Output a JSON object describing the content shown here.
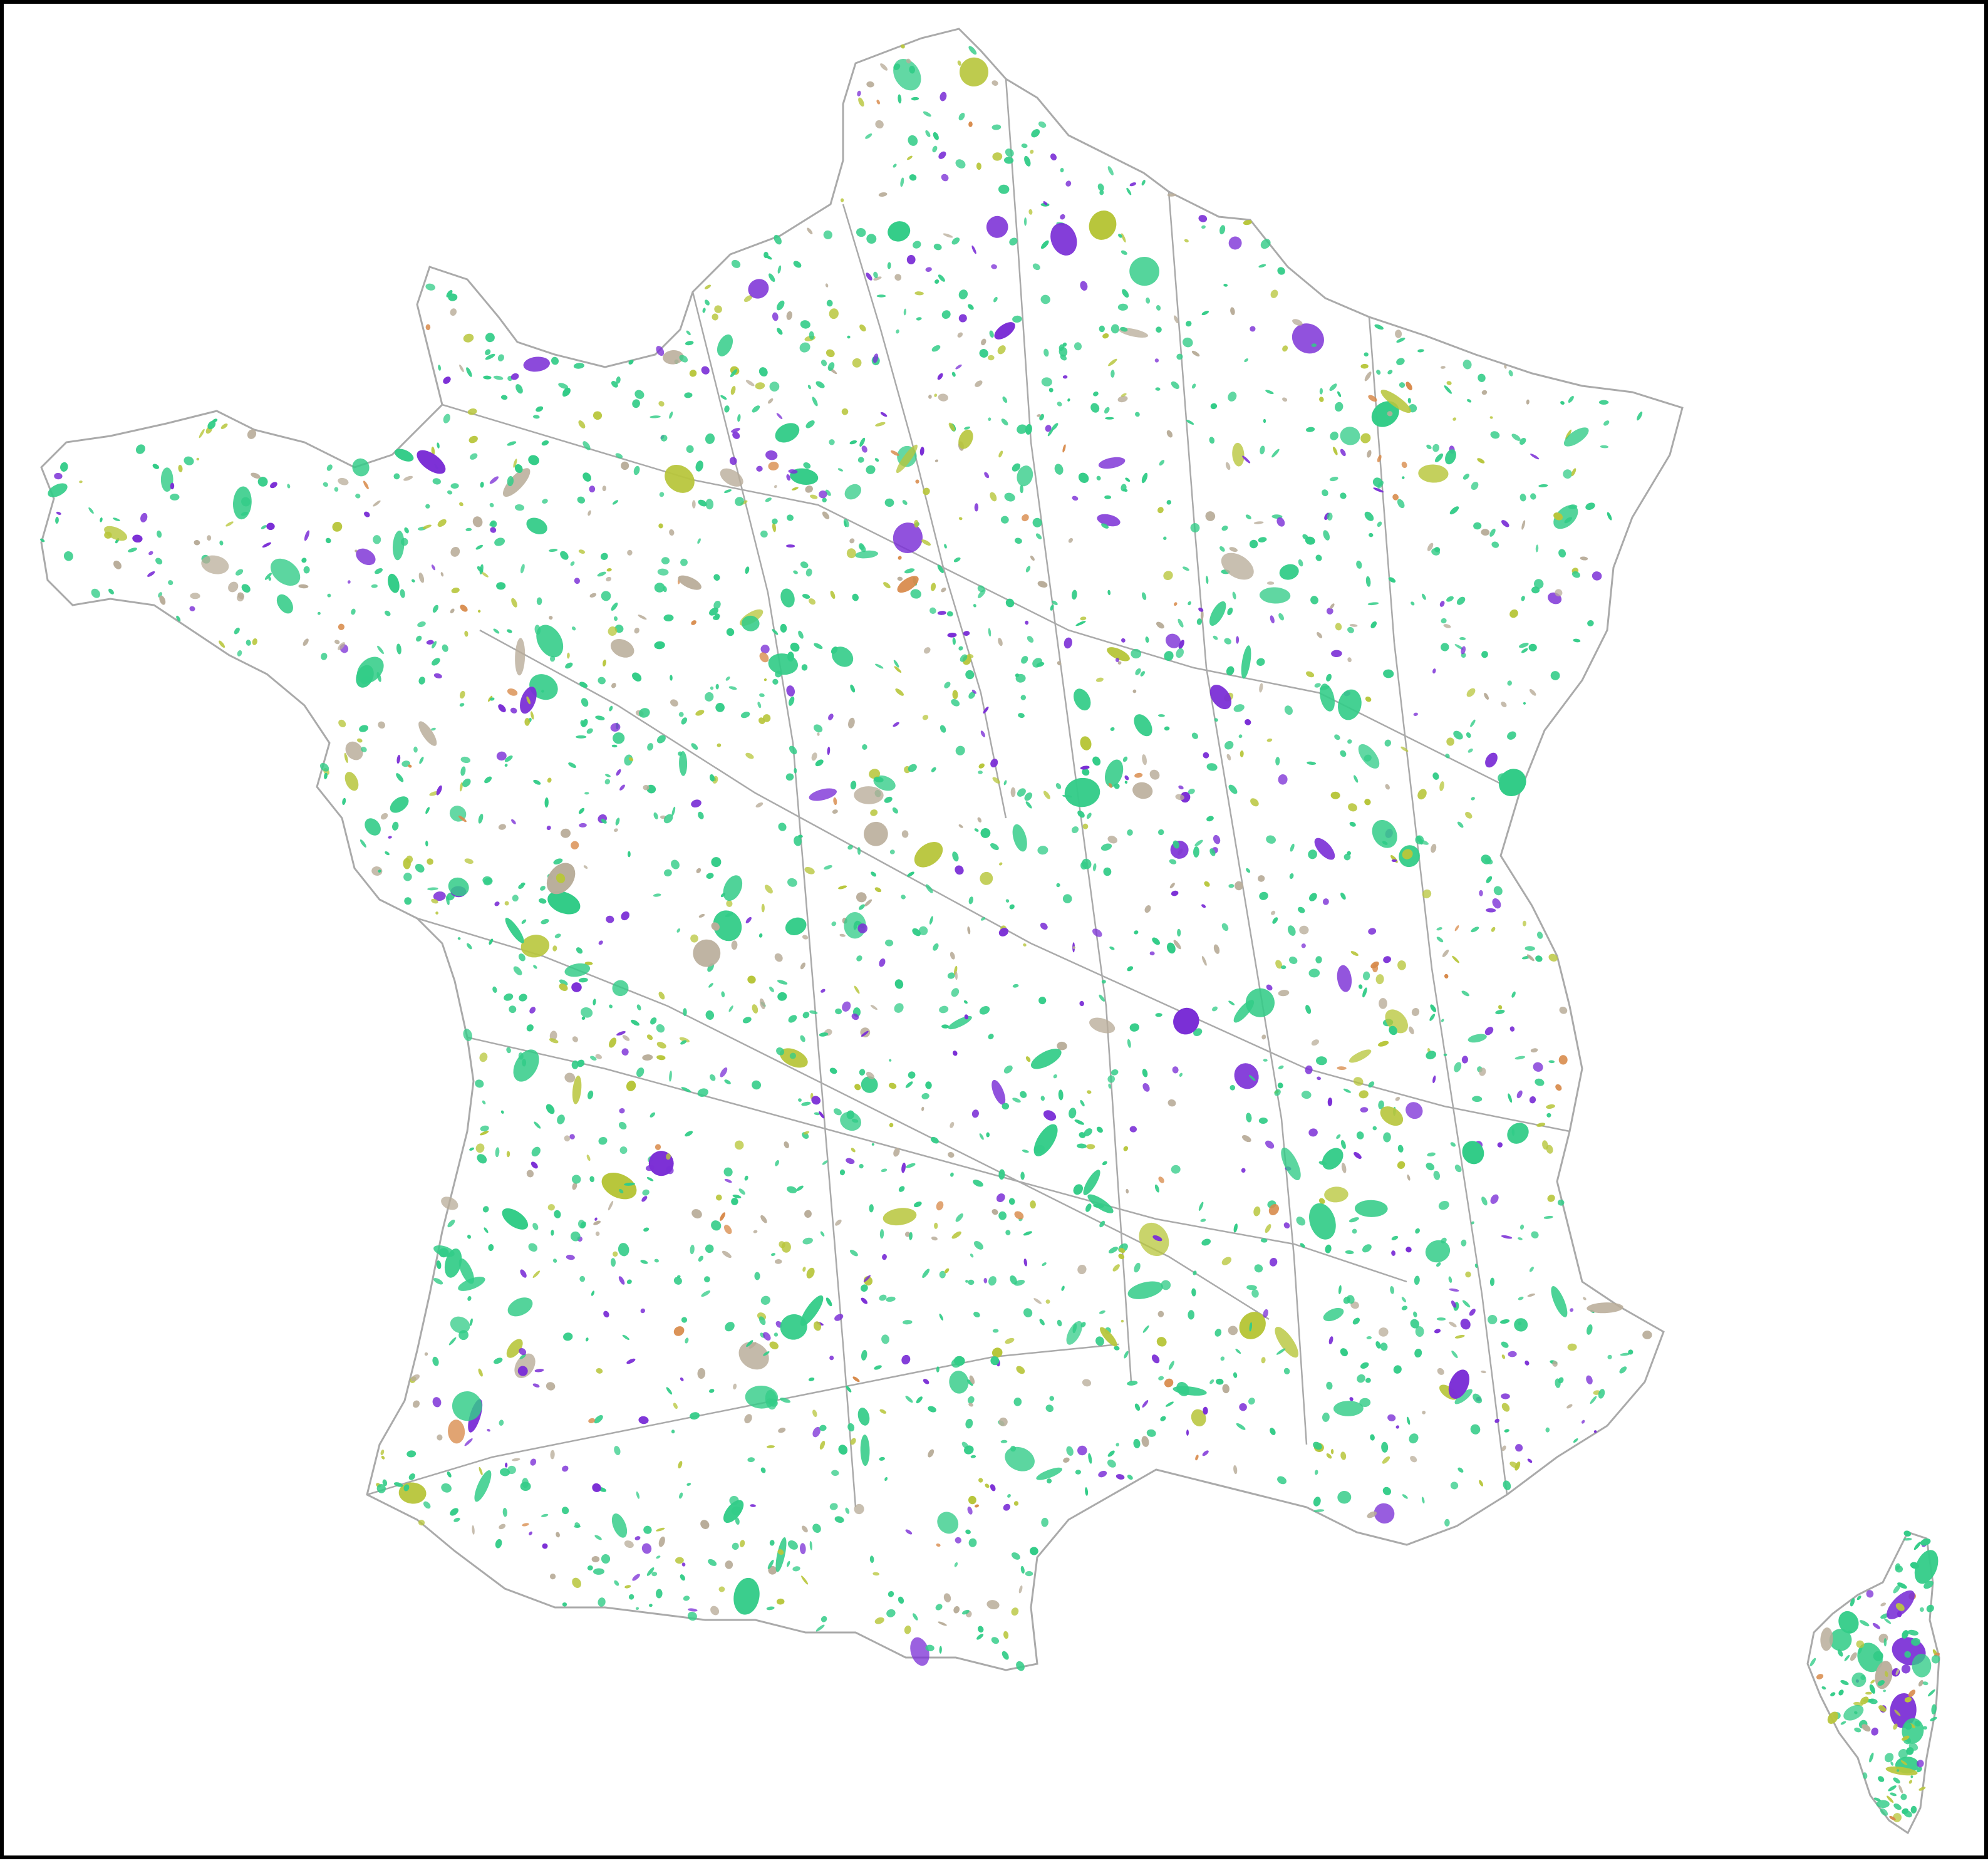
{
  "map": {
    "region": "France",
    "background_color": "#ffffff",
    "frame_color": "#000000",
    "boundary_color": "#aaaaaa",
    "landmass_color": "#ffffff",
    "categories": [
      {
        "key": "green",
        "color": "#33cc88",
        "weight": 0.58
      },
      {
        "key": "purple",
        "color": "#7b2fd6",
        "weight": 0.14
      },
      {
        "key": "yellow-green",
        "color": "#b8c63c",
        "weight": 0.14
      },
      {
        "key": "tan-grey",
        "color": "#b9ad9a",
        "weight": 0.12
      },
      {
        "key": "orange",
        "color": "#d88a4a",
        "weight": 0.02
      }
    ]
  }
}
